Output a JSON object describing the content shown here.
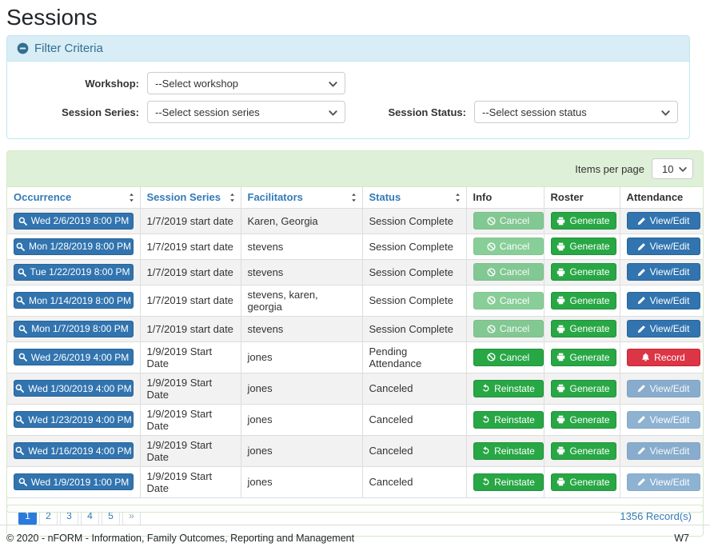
{
  "page": {
    "title": "Sessions"
  },
  "colors": {
    "accent_blue": "#337ab7",
    "button_blue": "#3174af",
    "success_green": "#28a745",
    "danger_red": "#dc3545",
    "filter_header_bg": "#d9edf7",
    "filter_header_text": "#31708f",
    "table_topbar_bg": "#dff0d8",
    "row_stripe": "#f2f2f2"
  },
  "filter": {
    "header": {
      "label": "Filter Criteria",
      "icon": "minus-circle"
    },
    "fields": [
      {
        "label": "Workshop:",
        "value": "--Select workshop",
        "icon": "chevron-down"
      },
      {
        "label": "Session Series:",
        "value": "--Select session series",
        "icon": "chevron-down"
      },
      {
        "label": "Session Status:",
        "value": "--Select session status",
        "icon": "chevron-down"
      }
    ]
  },
  "table": {
    "items_per_page": {
      "label": "Items per page",
      "value": "10",
      "icon": "chevron-down"
    },
    "columns": [
      {
        "label": "Occurrence",
        "sortable": true
      },
      {
        "label": "Session Series",
        "sortable": true
      },
      {
        "label": "Facilitators",
        "sortable": true
      },
      {
        "label": "Status",
        "sortable": true
      },
      {
        "label": "Info",
        "sortable": false
      },
      {
        "label": "Roster",
        "sortable": false
      },
      {
        "label": "Attendance",
        "sortable": false
      }
    ],
    "rows": [
      {
        "occurrence": {
          "label": "Wed 2/6/2019 8:00 PM",
          "icon": "search"
        },
        "session_series": "1/7/2019 start date",
        "facilitators": "Karen, Georgia",
        "status": "Session Complete",
        "info": {
          "label": "Cancel",
          "icon": "ban",
          "variant": "success",
          "disabled": true
        },
        "roster": {
          "label": "Generate",
          "icon": "printer",
          "variant": "success",
          "disabled": false
        },
        "attendance": {
          "label": "View/Edit",
          "icon": "pencil",
          "variant": "primary",
          "disabled": false
        }
      },
      {
        "occurrence": {
          "label": "Mon 1/28/2019 8:00 PM",
          "icon": "search"
        },
        "session_series": "1/7/2019 start date",
        "facilitators": "stevens",
        "status": "Session Complete",
        "info": {
          "label": "Cancel",
          "icon": "ban",
          "variant": "success",
          "disabled": true
        },
        "roster": {
          "label": "Generate",
          "icon": "printer",
          "variant": "success",
          "disabled": false
        },
        "attendance": {
          "label": "View/Edit",
          "icon": "pencil",
          "variant": "primary",
          "disabled": false
        }
      },
      {
        "occurrence": {
          "label": "Tue 1/22/2019 8:00 PM",
          "icon": "search"
        },
        "session_series": "1/7/2019 start date",
        "facilitators": "stevens",
        "status": "Session Complete",
        "info": {
          "label": "Cancel",
          "icon": "ban",
          "variant": "success",
          "disabled": true
        },
        "roster": {
          "label": "Generate",
          "icon": "printer",
          "variant": "success",
          "disabled": false
        },
        "attendance": {
          "label": "View/Edit",
          "icon": "pencil",
          "variant": "primary",
          "disabled": false
        }
      },
      {
        "occurrence": {
          "label": "Mon 1/14/2019 8:00 PM",
          "icon": "search"
        },
        "session_series": "1/7/2019 start date",
        "facilitators": "stevens, karen, georgia",
        "status": "Session Complete",
        "info": {
          "label": "Cancel",
          "icon": "ban",
          "variant": "success",
          "disabled": true
        },
        "roster": {
          "label": "Generate",
          "icon": "printer",
          "variant": "success",
          "disabled": false
        },
        "attendance": {
          "label": "View/Edit",
          "icon": "pencil",
          "variant": "primary",
          "disabled": false
        }
      },
      {
        "occurrence": {
          "label": "Mon 1/7/2019 8:00 PM",
          "icon": "search"
        },
        "session_series": "1/7/2019 start date",
        "facilitators": "stevens",
        "status": "Session Complete",
        "info": {
          "label": "Cancel",
          "icon": "ban",
          "variant": "success",
          "disabled": true
        },
        "roster": {
          "label": "Generate",
          "icon": "printer",
          "variant": "success",
          "disabled": false
        },
        "attendance": {
          "label": "View/Edit",
          "icon": "pencil",
          "variant": "primary",
          "disabled": false
        }
      },
      {
        "occurrence": {
          "label": "Wed 2/6/2019 4:00 PM",
          "icon": "search"
        },
        "session_series": "1/9/2019 Start Date",
        "facilitators": "jones",
        "status": "Pending Attendance",
        "info": {
          "label": "Cancel",
          "icon": "ban",
          "variant": "success",
          "disabled": false
        },
        "roster": {
          "label": "Generate",
          "icon": "printer",
          "variant": "success",
          "disabled": false
        },
        "attendance": {
          "label": "Record",
          "icon": "bell",
          "variant": "danger",
          "disabled": false
        }
      },
      {
        "occurrence": {
          "label": "Wed 1/30/2019 4:00 PM",
          "icon": "search"
        },
        "session_series": "1/9/2019 Start Date",
        "facilitators": "jones",
        "status": "Canceled",
        "info": {
          "label": "Reinstate",
          "icon": "undo",
          "variant": "success",
          "disabled": false
        },
        "roster": {
          "label": "Generate",
          "icon": "printer",
          "variant": "success",
          "disabled": false
        },
        "attendance": {
          "label": "View/Edit",
          "icon": "pencil",
          "variant": "primary",
          "disabled": true
        }
      },
      {
        "occurrence": {
          "label": "Wed 1/23/2019 4:00 PM",
          "icon": "search"
        },
        "session_series": "1/9/2019 Start Date",
        "facilitators": "jones",
        "status": "Canceled",
        "info": {
          "label": "Reinstate",
          "icon": "undo",
          "variant": "success",
          "disabled": false
        },
        "roster": {
          "label": "Generate",
          "icon": "printer",
          "variant": "success",
          "disabled": false
        },
        "attendance": {
          "label": "View/Edit",
          "icon": "pencil",
          "variant": "primary",
          "disabled": true
        }
      },
      {
        "occurrence": {
          "label": "Wed 1/16/2019 4:00 PM",
          "icon": "search"
        },
        "session_series": "1/9/2019 Start Date",
        "facilitators": "jones",
        "status": "Canceled",
        "info": {
          "label": "Reinstate",
          "icon": "undo",
          "variant": "success",
          "disabled": false
        },
        "roster": {
          "label": "Generate",
          "icon": "printer",
          "variant": "success",
          "disabled": false
        },
        "attendance": {
          "label": "View/Edit",
          "icon": "pencil",
          "variant": "primary",
          "disabled": true
        }
      },
      {
        "occurrence": {
          "label": "Wed 1/9/2019 1:00 PM",
          "icon": "search"
        },
        "session_series": "1/9/2019 Start Date",
        "facilitators": "jones",
        "status": "Canceled",
        "info": {
          "label": "Reinstate",
          "icon": "undo",
          "variant": "success",
          "disabled": false
        },
        "roster": {
          "label": "Generate",
          "icon": "printer",
          "variant": "success",
          "disabled": false
        },
        "attendance": {
          "label": "View/Edit",
          "icon": "pencil",
          "variant": "primary",
          "disabled": true
        }
      }
    ],
    "pagination": {
      "pages": [
        "1",
        "2",
        "3",
        "4",
        "5"
      ],
      "next": "»",
      "active": "1"
    },
    "records": "1356 Record(s)"
  },
  "footer": {
    "copyright": "© 2020 - nFORM - Information, Family Outcomes, Reporting and Management",
    "right_text": "W7"
  }
}
